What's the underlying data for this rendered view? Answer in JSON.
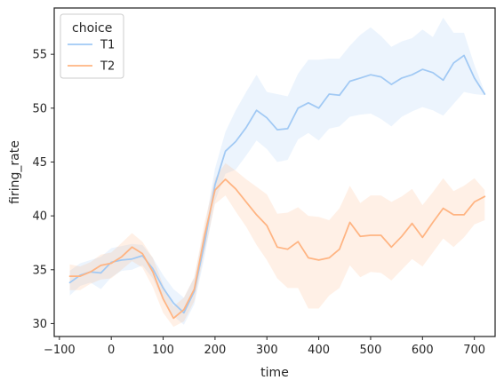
{
  "chart_data": {
    "type": "line",
    "title": "",
    "xlabel": "time",
    "ylabel": "firing_rate",
    "xlim": [
      -110,
      740
    ],
    "ylim": [
      28.8,
      59.3
    ],
    "xticks": [
      -100,
      0,
      100,
      200,
      300,
      400,
      500,
      600,
      700
    ],
    "xtick_labels": [
      "−100",
      "0",
      "100",
      "200",
      "300",
      "400",
      "500",
      "600",
      "700"
    ],
    "yticks": [
      30,
      35,
      40,
      45,
      50,
      55
    ],
    "ytick_labels": [
      "30",
      "35",
      "40",
      "45",
      "50",
      "55"
    ],
    "grid": false,
    "legend": {
      "title": "choice",
      "placement": "top-left"
    },
    "x": [
      -80,
      -60,
      -40,
      -20,
      0,
      20,
      40,
      60,
      80,
      100,
      120,
      140,
      160,
      180,
      200,
      220,
      240,
      260,
      280,
      300,
      320,
      340,
      360,
      380,
      400,
      420,
      440,
      460,
      480,
      500,
      520,
      540,
      560,
      580,
      600,
      620,
      640,
      660,
      680,
      700,
      720
    ],
    "series": [
      {
        "name": "T1",
        "color": "#a1c9f4",
        "band_color": "#a1c9f4",
        "values": [
          33.8,
          34.5,
          34.8,
          34.7,
          35.7,
          35.9,
          36.0,
          36.3,
          35.1,
          33.3,
          31.9,
          31.0,
          33.0,
          37.5,
          42.9,
          46.0,
          46.9,
          48.2,
          49.8,
          49.1,
          48.0,
          48.1,
          50.0,
          50.5,
          50.0,
          51.3,
          51.2,
          52.5,
          52.8,
          53.1,
          52.9,
          52.2,
          52.8,
          53.1,
          53.6,
          53.3,
          52.6,
          54.2,
          54.9,
          52.8,
          51.3
        ],
        "lower": [
          32.6,
          33.5,
          33.8,
          33.2,
          34.3,
          34.9,
          35.0,
          35.4,
          34.2,
          32.1,
          30.7,
          29.9,
          31.8,
          36.2,
          41.4,
          43.9,
          44.3,
          45.6,
          47.0,
          46.2,
          45.0,
          45.2,
          47.1,
          47.7,
          47.0,
          48.1,
          48.3,
          49.2,
          49.4,
          49.5,
          49.0,
          48.3,
          49.2,
          49.7,
          50.1,
          49.8,
          49.3,
          50.4,
          51.5,
          51.3,
          51.2
        ],
        "upper": [
          34.9,
          35.6,
          35.9,
          36.2,
          37.0,
          37.2,
          37.4,
          37.3,
          36.1,
          34.5,
          33.2,
          32.4,
          34.3,
          38.8,
          44.4,
          47.8,
          49.8,
          51.5,
          53.1,
          51.5,
          51.3,
          51.1,
          53.2,
          54.5,
          54.5,
          54.6,
          54.6,
          55.8,
          56.8,
          57.5,
          56.7,
          55.7,
          56.2,
          56.5,
          57.3,
          56.6,
          58.4,
          57.0,
          57.0,
          54.0,
          51.5
        ]
      },
      {
        "name": "T2",
        "color": "#ffb482",
        "band_color": "#ffb482",
        "values": [
          34.4,
          34.4,
          34.8,
          35.4,
          35.6,
          36.2,
          37.1,
          36.5,
          34.8,
          32.3,
          30.5,
          31.3,
          33.2,
          38.2,
          42.4,
          43.4,
          42.5,
          41.3,
          40.1,
          39.1,
          37.1,
          36.9,
          37.6,
          36.1,
          35.9,
          36.1,
          36.9,
          39.4,
          38.1,
          38.2,
          38.2,
          37.1,
          38.1,
          39.3,
          38.0,
          39.4,
          40.7,
          40.1,
          40.1,
          41.3,
          41.8
        ],
        "lower": [
          33.1,
          33.1,
          33.7,
          34.1,
          34.2,
          35.0,
          35.8,
          35.2,
          33.4,
          31.0,
          29.7,
          30.2,
          32.1,
          36.7,
          41.1,
          41.9,
          40.4,
          39.0,
          37.3,
          35.9,
          34.2,
          33.3,
          33.3,
          31.4,
          31.4,
          32.6,
          33.3,
          35.4,
          34.3,
          34.8,
          34.7,
          34.0,
          35.0,
          36.0,
          35.3,
          36.6,
          37.9,
          37.1,
          38.0,
          39.2,
          39.6
        ],
        "upper": [
          35.5,
          35.3,
          35.7,
          36.4,
          36.6,
          37.5,
          38.4,
          37.6,
          36.1,
          33.6,
          31.6,
          32.4,
          34.3,
          39.4,
          43.5,
          44.9,
          44.2,
          43.4,
          42.7,
          42.0,
          40.2,
          40.3,
          40.8,
          40.0,
          39.9,
          39.6,
          40.7,
          42.8,
          41.2,
          41.9,
          41.9,
          41.3,
          41.8,
          42.5,
          41.0,
          42.2,
          43.5,
          42.3,
          42.8,
          43.5,
          42.4
        ]
      }
    ]
  }
}
